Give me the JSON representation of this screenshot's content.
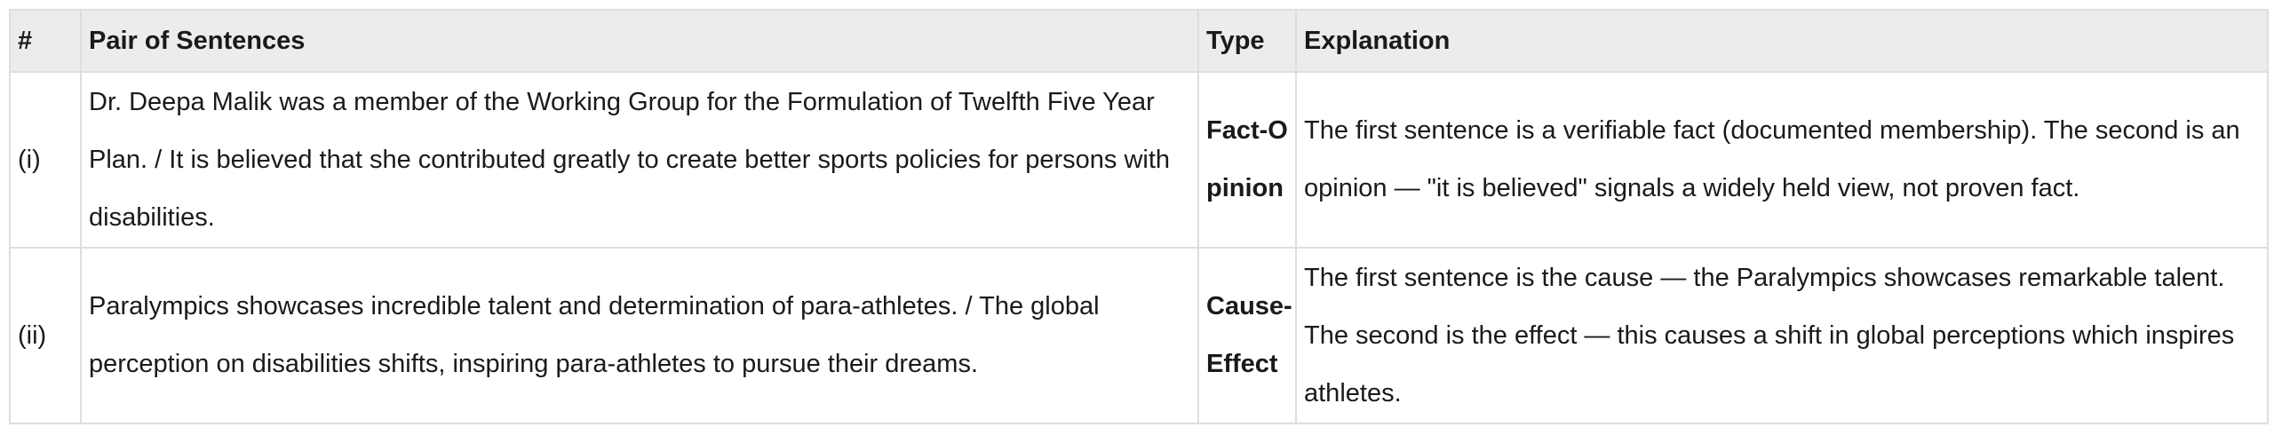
{
  "table": {
    "headers": [
      "#",
      "Pair of Sentences",
      "Type",
      "Explanation"
    ],
    "rows": [
      {
        "num": "(i)",
        "pair": "Dr. Deepa Malik was a member of the Working Group for the Formulation of Twelfth Five Year Plan. / It is believed that she contributed greatly to create better sports policies for persons with disabilities.",
        "type": "Fact-Opinion",
        "explanation": "The first sentence is a verifiable fact (documented membership). The second is an opinion — \"it is believed\" signals a widely held view, not proven fact."
      },
      {
        "num": "(ii)",
        "pair": "Paralympics showcases incredible talent and determination of para-athletes. / The global perception on disabilities shifts, inspiring para-athletes to pursue their dreams.",
        "type": "Cause-Effect",
        "explanation": "The first sentence is the cause — the Paralympics showcases remarkable talent. The second is the effect — this causes a shift in global perceptions which inspires athletes."
      }
    ]
  }
}
